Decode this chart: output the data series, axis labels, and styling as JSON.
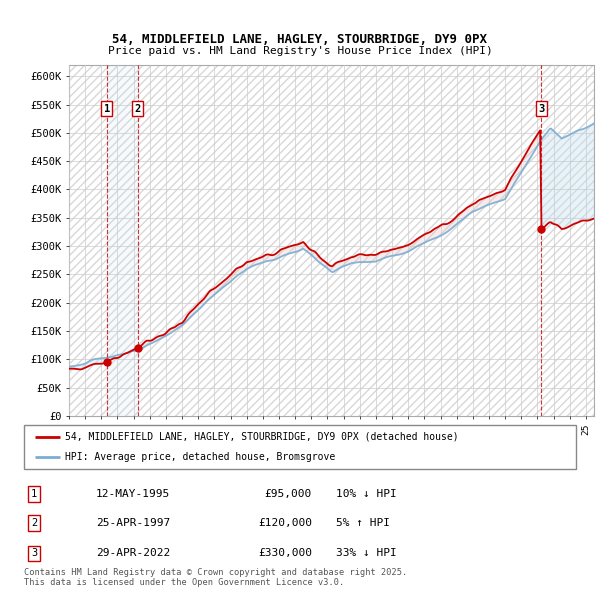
{
  "title1": "54, MIDDLEFIELD LANE, HAGLEY, STOURBRIDGE, DY9 0PX",
  "title2": "Price paid vs. HM Land Registry's House Price Index (HPI)",
  "ylabel_values": [
    "£0",
    "£50K",
    "£100K",
    "£150K",
    "£200K",
    "£250K",
    "£300K",
    "£350K",
    "£400K",
    "£450K",
    "£500K",
    "£550K",
    "£600K"
  ],
  "ylim": [
    0,
    620000
  ],
  "yticks": [
    0,
    50000,
    100000,
    150000,
    200000,
    250000,
    300000,
    350000,
    400000,
    450000,
    500000,
    550000,
    600000
  ],
  "sale_prices": [
    95000,
    120000,
    330000
  ],
  "sale_labels": [
    "1",
    "2",
    "3"
  ],
  "sale_pct": [
    "10% ↓ HPI",
    "5% ↑ HPI",
    "33% ↓ HPI"
  ],
  "sale_date_labels": [
    "12-MAY-1995",
    "25-APR-1997",
    "29-APR-2022"
  ],
  "legend_line1": "54, MIDDLEFIELD LANE, HAGLEY, STOURBRIDGE, DY9 0PX (detached house)",
  "legend_line2": "HPI: Average price, detached house, Bromsgrove",
  "footer": "Contains HM Land Registry data © Crown copyright and database right 2025.\nThis data is licensed under the Open Government Licence v3.0.",
  "price_color": "#cc0000",
  "hpi_color": "#7aadd4",
  "hpi_fill_color": "#c5dff0",
  "grid_color": "#cccccc",
  "xlim_start": 1993.0,
  "xlim_end": 2025.5,
  "hatch_end": 1997.5
}
